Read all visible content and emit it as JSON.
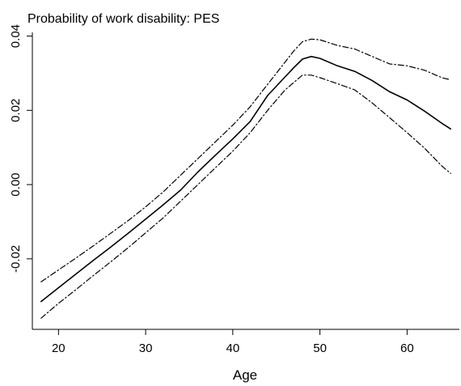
{
  "chart_data": {
    "type": "line",
    "title": "Probability of work disability: PES",
    "xlabel": "Age",
    "ylabel": "",
    "xlim": [
      17,
      66
    ],
    "ylim": [
      -0.039,
      0.041
    ],
    "x_ticks": [
      20,
      30,
      40,
      50,
      60
    ],
    "x_tick_labels": [
      "20",
      "30",
      "40",
      "50",
      "60"
    ],
    "y_ticks": [
      -0.02,
      0.0,
      0.02,
      0.04
    ],
    "y_tick_labels": [
      "-0.02",
      "0.00",
      "0.02",
      "0.04"
    ],
    "grid": false,
    "legend": "none",
    "series": [
      {
        "style": "solid",
        "x": [
          18,
          20,
          22,
          24,
          26,
          28,
          30,
          32,
          34,
          36,
          38,
          40,
          42,
          44,
          46,
          47,
          48,
          49,
          50,
          52,
          54,
          56,
          58,
          60,
          62,
          64,
          65
        ],
        "values": [
          -0.0315,
          -0.0278,
          -0.0241,
          -0.0204,
          -0.0168,
          -0.0131,
          -0.0093,
          -0.0055,
          -0.0015,
          0.0034,
          0.0079,
          0.0123,
          0.017,
          0.024,
          0.029,
          0.0315,
          0.0338,
          0.0345,
          0.034,
          0.032,
          0.0305,
          0.028,
          0.025,
          0.0228,
          0.0198,
          0.0165,
          0.015
        ]
      },
      {
        "style": "dashdot",
        "x": [
          18,
          20,
          22,
          24,
          26,
          28,
          30,
          32,
          34,
          36,
          38,
          40,
          42,
          44,
          46,
          47,
          48,
          49,
          50,
          52,
          54,
          56,
          58,
          60,
          62,
          64,
          65
        ],
        "values": [
          -0.0262,
          -0.023,
          -0.0198,
          -0.0165,
          -0.0131,
          -0.0097,
          -0.006,
          -0.002,
          0.0025,
          0.007,
          0.0115,
          0.016,
          0.021,
          0.027,
          0.033,
          0.036,
          0.0385,
          0.0392,
          0.039,
          0.0375,
          0.0365,
          0.0345,
          0.0325,
          0.032,
          0.0308,
          0.0288,
          0.0282
        ]
      },
      {
        "style": "dashdot",
        "x": [
          18,
          20,
          22,
          24,
          26,
          28,
          30,
          32,
          34,
          36,
          38,
          40,
          42,
          44,
          46,
          47,
          48,
          49,
          50,
          52,
          54,
          56,
          58,
          60,
          62,
          64,
          65
        ],
        "values": [
          -0.036,
          -0.032,
          -0.0283,
          -0.0245,
          -0.0208,
          -0.017,
          -0.013,
          -0.009,
          -0.0045,
          0.0,
          0.0045,
          0.009,
          0.014,
          0.02,
          0.0255,
          0.0275,
          0.0295,
          0.0295,
          0.0288,
          0.0272,
          0.0255,
          0.022,
          0.018,
          0.014,
          0.0098,
          0.005,
          0.003
        ]
      }
    ]
  }
}
